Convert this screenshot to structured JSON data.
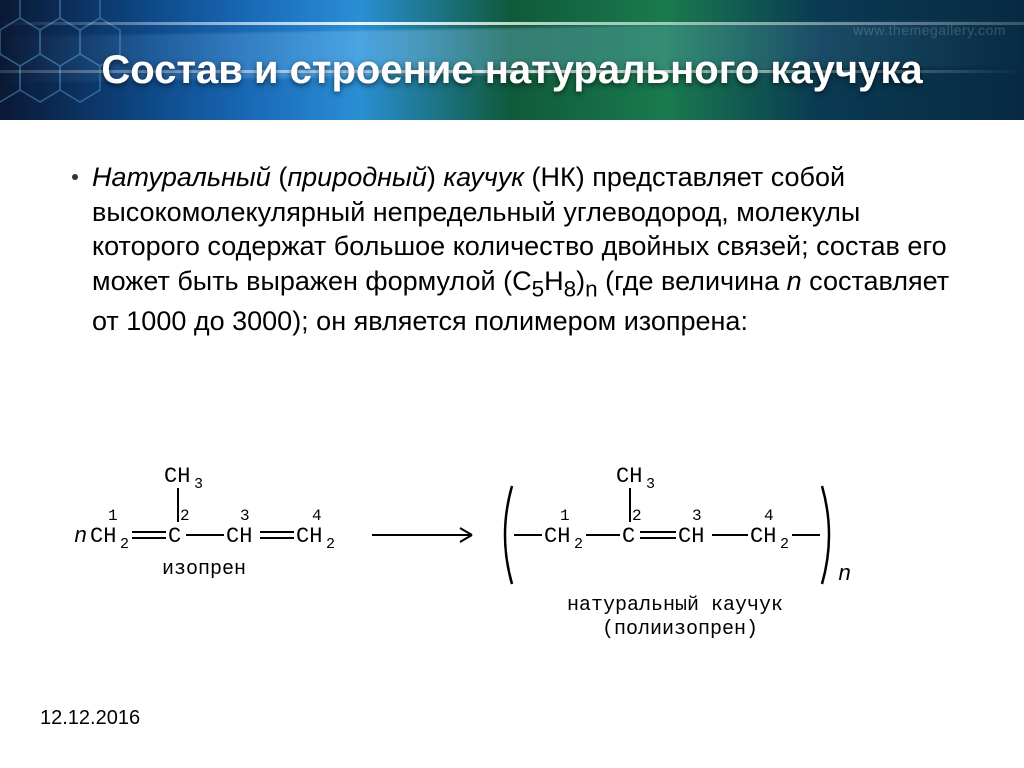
{
  "header": {
    "title": "Состав и строение натурального каучука",
    "watermark": "www.themegallery.com",
    "gradient_colors": [
      "#0a1833",
      "#0e4a8a",
      "#1a6bb8",
      "#2a8fd4",
      "#0f5a3a",
      "#1a7a4f",
      "#0a3a52",
      "#072a42"
    ],
    "hex_stroke": "#5aa0d8"
  },
  "body": {
    "bullet_color": "#333333",
    "text_color": "#000000",
    "para_fontsize": 27,
    "paragraph_html": "<em>Натуральный</em> (<em>природный</em>) <em>каучук</em> (НК) представляет собой высокомолекулярный непредельный углеводород, молекулы которого содержат большое количество двойных связей; состав его может быть выражен формулой (C<sub>5</sub>H<sub>8</sub>)<sub>n</sub> (где величина <em>n</em> составляет от 1000 до 3000); он является полимером изопрена:"
  },
  "reaction": {
    "monomer": {
      "coeff": "n",
      "carbons": [
        "CH2",
        "C",
        "CH",
        "CH2"
      ],
      "subnums": [
        "1",
        "2",
        "3",
        "4"
      ],
      "substituent": "CH3",
      "label": "изопрен"
    },
    "arrow": "——→",
    "polymer": {
      "carbons": [
        "CH2",
        "C",
        "CH",
        "CH2"
      ],
      "subnums": [
        "1",
        "2",
        "3",
        "4"
      ],
      "substituent": "CH3",
      "repeat_sub": "n",
      "label1": "натуральный каучук",
      "label2": "(полиизопрен)"
    },
    "font": "Courier New"
  },
  "footer": {
    "date": "12.12.2016"
  }
}
